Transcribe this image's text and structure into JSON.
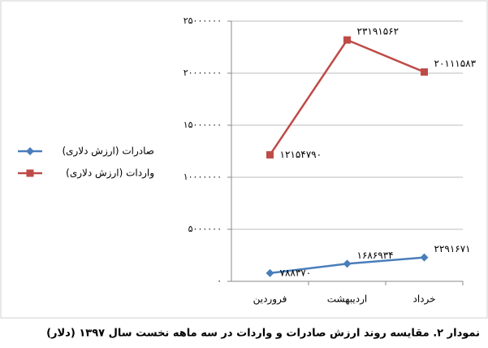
{
  "chart_data": {
    "type": "line",
    "caption": "نمودار ۲. مقایسه روند ارزش صادرات و واردات در سه ماهه نخست سال ۱۳۹۷ (دلار)",
    "categories": [
      "فروردین",
      "اردیبهشت",
      "خرداد"
    ],
    "series": [
      {
        "name": "صادرات (ارزش دلاری)",
        "color": "#4a7ebb",
        "marker": "diamond",
        "values": [
          788370,
          1686934,
          2291671
        ],
        "value_labels": [
          "۷۸۸۳۷۰",
          "۱۶۸۶۹۳۴",
          "۲۲۹۱۶۷۱"
        ]
      },
      {
        "name": "واردات (ارزش دلاری)",
        "color": "#be4b48",
        "marker": "square",
        "values": [
          12154790,
          23191562,
          20111583
        ],
        "value_labels": [
          "۱۲۱۵۴۷۹۰",
          "۲۳۱۹۱۵۶۲",
          "۲۰۱۱۱۵۸۳"
        ]
      }
    ],
    "ylim": [
      0,
      25000000
    ],
    "yticks": [
      {
        "value": 0,
        "label": "۰"
      },
      {
        "value": 5000000,
        "label": "۵۰۰۰۰۰۰"
      },
      {
        "value": 10000000,
        "label": "۱۰۰۰۰۰۰۰"
      },
      {
        "value": 15000000,
        "label": "۱۵۰۰۰۰۰۰"
      },
      {
        "value": 20000000,
        "label": "۲۰۰۰۰۰۰۰"
      },
      {
        "value": 25000000,
        "label": "۲۵۰۰۰۰۰۰"
      }
    ],
    "grid": true,
    "legend": "left"
  }
}
